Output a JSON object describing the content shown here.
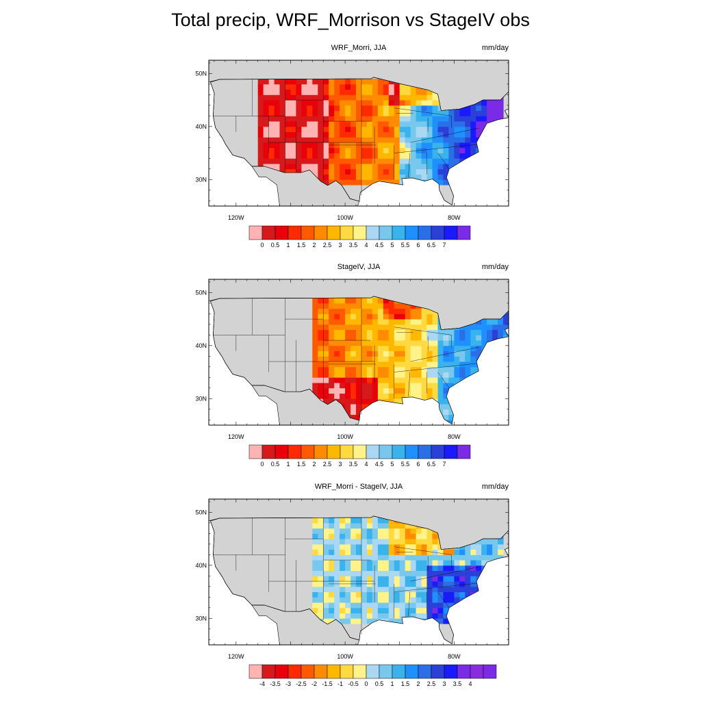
{
  "title": "Total precip, WRF_Morrison vs StageIV obs",
  "panels": [
    {
      "name": "wrf",
      "title": "WRF_Morri, JJA",
      "units": "mm/day",
      "lat_labels": [
        "50N",
        "40N",
        "30N"
      ],
      "lon_labels": [
        "120W",
        "100W",
        "80W"
      ],
      "colorbar": {
        "labels": [
          "0",
          "0.5",
          "1",
          "1.5",
          "2",
          "2.5",
          "3",
          "3.5",
          "4",
          "4.5",
          "5",
          "5.5",
          "6",
          "6.5",
          "7"
        ],
        "colors": [
          "#ffb3b3",
          "#d7191c",
          "#e8000b",
          "#ff2a00",
          "#ff5a00",
          "#ff8c00",
          "#ffb700",
          "#ffd940",
          "#fff38a",
          "#aad7f2",
          "#78c8ee",
          "#3ab2ec",
          "#1e90ff",
          "#2a6fe8",
          "#2a40d8",
          "#1a1aff",
          "#7a2be6"
        ]
      }
    },
    {
      "name": "stageiv",
      "title": "StageIV, JJA",
      "units": "mm/day",
      "lat_labels": [
        "50N",
        "40N",
        "30N"
      ],
      "lon_labels": [
        "120W",
        "100W",
        "80W"
      ],
      "colorbar": {
        "labels": [
          "0",
          "0.5",
          "1",
          "1.5",
          "2",
          "2.5",
          "3",
          "3.5",
          "4",
          "4.5",
          "5",
          "5.5",
          "6",
          "6.5",
          "7"
        ],
        "colors": [
          "#ffb3b3",
          "#d7191c",
          "#e8000b",
          "#ff2a00",
          "#ff5a00",
          "#ff8c00",
          "#ffb700",
          "#ffd940",
          "#fff38a",
          "#aad7f2",
          "#78c8ee",
          "#3ab2ec",
          "#1e90ff",
          "#2a6fe8",
          "#2a40d8",
          "#1a1aff",
          "#7a2be6"
        ]
      }
    },
    {
      "name": "diff",
      "title": "WRF_Morri - StageIV, JJA",
      "units": "mm/day",
      "lat_labels": [
        "50N",
        "40N",
        "30N"
      ],
      "lon_labels": [
        "120W",
        "100W",
        "80W"
      ],
      "colorbar": {
        "labels": [
          "-4",
          "-3.5",
          "-3",
          "-2.5",
          "-2",
          "-1.5",
          "-1",
          "-0.5",
          "0",
          "0.5",
          "1",
          "1.5",
          "2",
          "2.5",
          "3",
          "3.5",
          "4"
        ],
        "colors": [
          "#ffb3b3",
          "#d7191c",
          "#e8000b",
          "#ff2a00",
          "#ff5a00",
          "#ff8c00",
          "#ffb700",
          "#ffd940",
          "#fff38a",
          "#aad7f2",
          "#78c8ee",
          "#3ab2ec",
          "#1e90ff",
          "#2a6fe8",
          "#2a40d8",
          "#1a1aff",
          "#7a2be6",
          "#8a2be2",
          "#7a2be6"
        ]
      }
    }
  ],
  "colors": {
    "land": "#d3d3d3",
    "ocean": "#ffffff",
    "frame": "#000000"
  }
}
